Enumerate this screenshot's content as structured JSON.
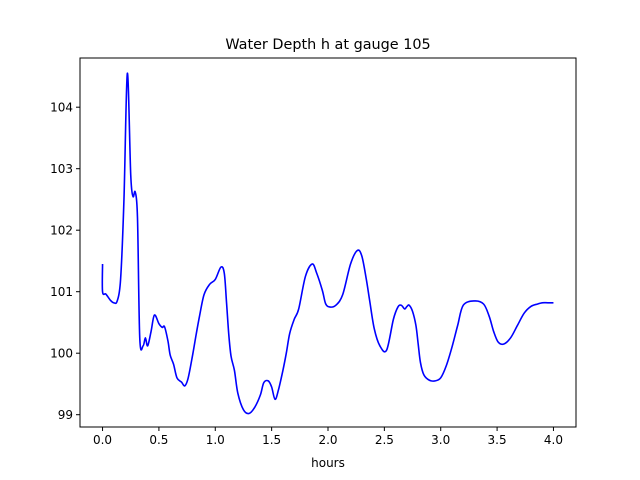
{
  "chart_data": {
    "type": "line",
    "title": "Water Depth h at gauge 105",
    "xlabel": "hours",
    "ylabel": "",
    "xlim": [
      -0.2,
      4.2
    ],
    "ylim": [
      98.8,
      104.8
    ],
    "grid": false,
    "legend": "none",
    "x_ticks": [
      {
        "value": 0.0,
        "label": "0.0"
      },
      {
        "value": 0.5,
        "label": "0.5"
      },
      {
        "value": 1.0,
        "label": "1.0"
      },
      {
        "value": 1.5,
        "label": "1.5"
      },
      {
        "value": 2.0,
        "label": "2.0"
      },
      {
        "value": 2.5,
        "label": "2.5"
      },
      {
        "value": 3.0,
        "label": "3.0"
      },
      {
        "value": 3.5,
        "label": "3.5"
      },
      {
        "value": 4.0,
        "label": "4.0"
      }
    ],
    "y_ticks": [
      {
        "value": 99,
        "label": "99"
      },
      {
        "value": 100,
        "label": "100"
      },
      {
        "value": 101,
        "label": "101"
      },
      {
        "value": 102,
        "label": "102"
      },
      {
        "value": 103,
        "label": "103"
      },
      {
        "value": 104,
        "label": "104"
      }
    ],
    "series": [
      {
        "color": "#0000ff",
        "x": [
          0.0,
          0.0,
          0.03,
          0.07,
          0.1,
          0.13,
          0.16,
          0.19,
          0.22,
          0.25,
          0.27,
          0.29,
          0.31,
          0.33,
          0.36,
          0.38,
          0.4,
          0.43,
          0.46,
          0.5,
          0.53,
          0.55,
          0.58,
          0.6,
          0.63,
          0.66,
          0.7,
          0.73,
          0.76,
          0.8,
          0.83,
          0.86,
          0.9,
          0.95,
          1.0,
          1.05,
          1.08,
          1.1,
          1.12,
          1.14,
          1.17,
          1.2,
          1.25,
          1.3,
          1.35,
          1.4,
          1.43,
          1.47,
          1.5,
          1.53,
          1.56,
          1.6,
          1.63,
          1.66,
          1.7,
          1.74,
          1.8,
          1.86,
          1.9,
          1.95,
          1.98,
          2.02,
          2.07,
          2.13,
          2.2,
          2.26,
          2.3,
          2.34,
          2.37,
          2.41,
          2.46,
          2.52,
          2.58,
          2.62,
          2.65,
          2.68,
          2.7,
          2.72,
          2.75,
          2.78,
          2.8,
          2.82,
          2.85,
          2.9,
          2.95,
          3.0,
          3.05,
          3.1,
          3.15,
          3.2,
          3.3,
          3.38,
          3.43,
          3.47,
          3.51,
          3.56,
          3.62,
          3.68,
          3.74,
          3.8,
          3.86,
          3.9,
          3.95,
          4.0
        ],
        "y": [
          101.45,
          101.0,
          100.96,
          100.86,
          100.82,
          100.85,
          101.2,
          102.5,
          104.55,
          102.9,
          102.55,
          102.62,
          102.2,
          100.25,
          100.12,
          100.25,
          100.12,
          100.35,
          100.62,
          100.48,
          100.42,
          100.43,
          100.2,
          99.97,
          99.82,
          99.6,
          99.53,
          99.47,
          99.6,
          99.98,
          100.3,
          100.6,
          100.95,
          101.12,
          101.2,
          101.4,
          101.3,
          100.82,
          100.3,
          99.95,
          99.72,
          99.35,
          99.08,
          99.02,
          99.12,
          99.32,
          99.52,
          99.55,
          99.45,
          99.25,
          99.4,
          99.72,
          100.0,
          100.32,
          100.55,
          100.72,
          101.25,
          101.45,
          101.3,
          101.02,
          100.8,
          100.75,
          100.78,
          100.95,
          101.45,
          101.67,
          101.58,
          101.2,
          100.85,
          100.4,
          100.12,
          100.05,
          100.55,
          100.75,
          100.78,
          100.72,
          100.76,
          100.78,
          100.68,
          100.45,
          100.15,
          99.85,
          99.65,
          99.56,
          99.55,
          99.6,
          99.8,
          100.1,
          100.45,
          100.78,
          100.85,
          100.8,
          100.6,
          100.35,
          100.18,
          100.15,
          100.25,
          100.45,
          100.65,
          100.76,
          100.8,
          100.82,
          100.82,
          100.82
        ]
      }
    ]
  }
}
